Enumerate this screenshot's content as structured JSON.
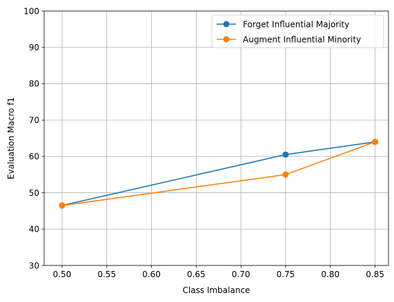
{
  "chart_data": {
    "type": "line",
    "title": "",
    "xlabel": "Class Imbalance",
    "ylabel": "Evaluation Macro f1",
    "xlim": [
      0.48,
      0.865
    ],
    "ylim": [
      30,
      100
    ],
    "xticks": [
      0.5,
      0.55,
      0.6,
      0.65,
      0.7,
      0.75,
      0.8,
      0.85
    ],
    "xtick_labels": [
      "0.50",
      "0.55",
      "0.60",
      "0.65",
      "0.70",
      "0.75",
      "0.80",
      "0.85"
    ],
    "yticks": [
      30,
      40,
      50,
      60,
      70,
      80,
      90,
      100
    ],
    "ytick_labels": [
      "30",
      "40",
      "50",
      "60",
      "70",
      "80",
      "90",
      "100"
    ],
    "grid": true,
    "legend_position": "top-right",
    "series": [
      {
        "name": "Forget Influential Majority",
        "color": "#1f77b4",
        "x": [
          0.5,
          0.75,
          0.85
        ],
        "y": [
          46.5,
          60.5,
          64.0
        ]
      },
      {
        "name": "Augment Influential Minority",
        "color": "#ff7f0e",
        "x": [
          0.5,
          0.75,
          0.85
        ],
        "y": [
          46.5,
          55.0,
          64.0
        ]
      }
    ]
  }
}
